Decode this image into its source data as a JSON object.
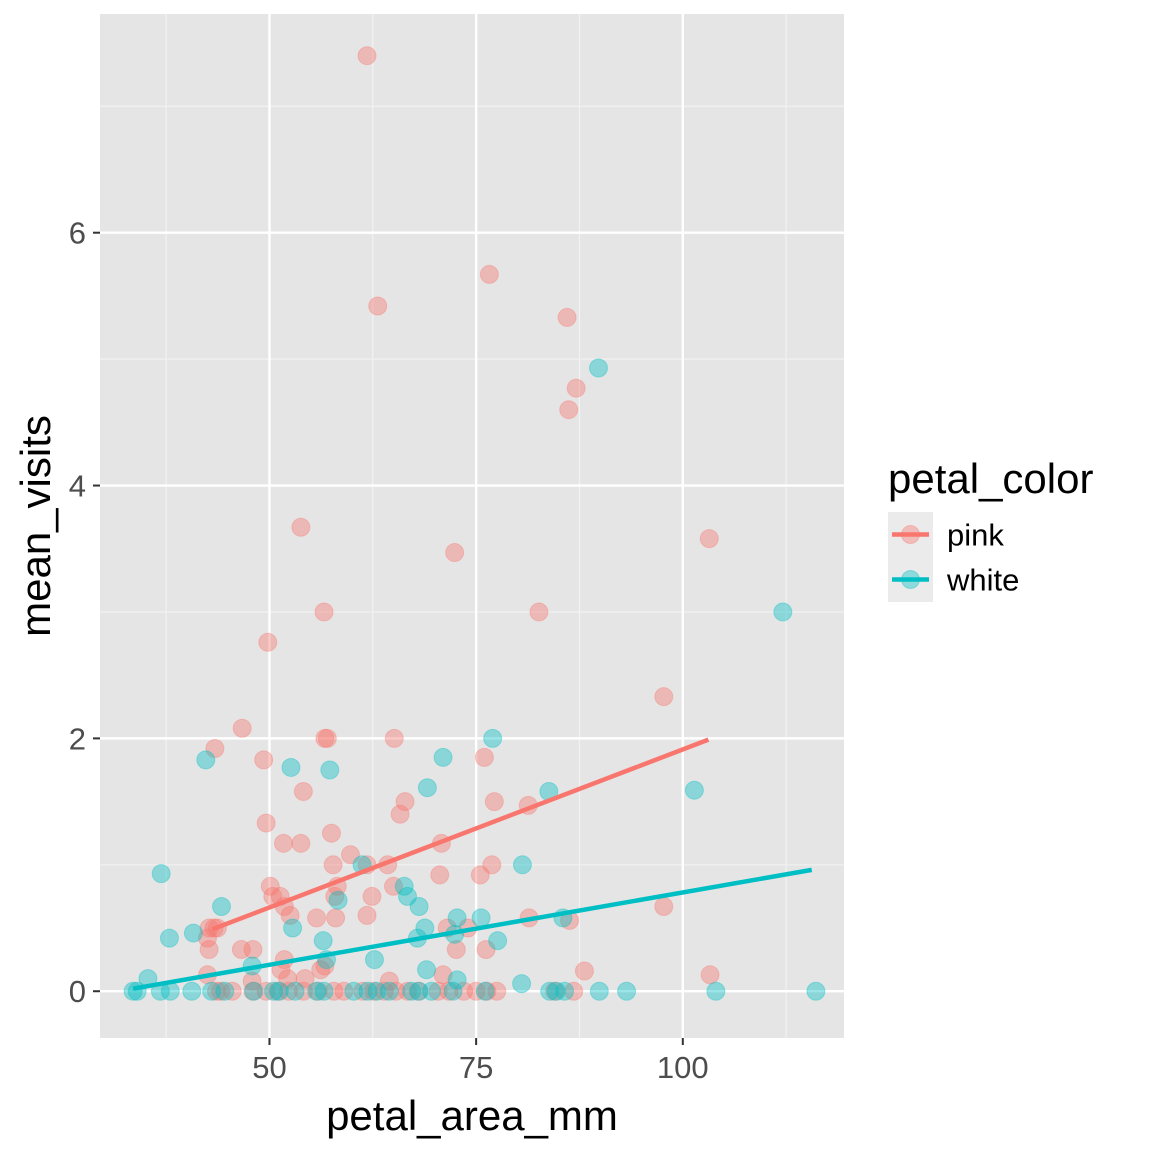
{
  "chart_data": {
    "type": "scatter",
    "title": "",
    "xlabel": "petal_area_mm",
    "ylabel": "mean_visits",
    "xlim": [
      29.5,
      119.5
    ],
    "ylim": [
      -0.37,
      7.73
    ],
    "x_ticks": [
      50,
      75,
      100
    ],
    "x_tick_labels": [
      "50",
      "75",
      "100"
    ],
    "y_ticks": [
      0,
      2,
      4,
      6
    ],
    "y_tick_labels": [
      "0",
      "2",
      "4",
      "6"
    ],
    "grid": true,
    "panel_background": "#e5e5e5",
    "legend": {
      "title": "petal_color",
      "position": "right",
      "entries": [
        "pink",
        "white"
      ]
    },
    "series": [
      {
        "name": "pink",
        "color": "#f8766d",
        "points": [
          [
            61.8,
            7.4
          ],
          [
            76.6,
            5.67
          ],
          [
            63.1,
            5.42
          ],
          [
            86.0,
            5.33
          ],
          [
            87.1,
            4.77
          ],
          [
            86.2,
            4.6
          ],
          [
            53.8,
            3.67
          ],
          [
            72.4,
            3.47
          ],
          [
            103.2,
            3.58
          ],
          [
            56.6,
            3.0
          ],
          [
            82.6,
            3.0
          ],
          [
            49.8,
            2.76
          ],
          [
            97.7,
            2.33
          ],
          [
            46.7,
            2.08
          ],
          [
            43.4,
            1.92
          ],
          [
            56.7,
            2.0
          ],
          [
            57.0,
            2.0
          ],
          [
            65.1,
            2.0
          ],
          [
            49.3,
            1.83
          ],
          [
            76.0,
            1.85
          ],
          [
            54.1,
            1.58
          ],
          [
            66.4,
            1.5
          ],
          [
            77.2,
            1.5
          ],
          [
            65.8,
            1.4
          ],
          [
            81.3,
            1.47
          ],
          [
            49.6,
            1.33
          ],
          [
            51.7,
            1.17
          ],
          [
            53.8,
            1.17
          ],
          [
            57.5,
            1.25
          ],
          [
            59.8,
            1.08
          ],
          [
            70.8,
            1.17
          ],
          [
            57.7,
            1.0
          ],
          [
            61.8,
            1.0
          ],
          [
            64.3,
            1.0
          ],
          [
            76.9,
            1.0
          ],
          [
            50.1,
            0.83
          ],
          [
            50.4,
            0.75
          ],
          [
            51.3,
            0.75
          ],
          [
            57.9,
            0.75
          ],
          [
            58.2,
            0.83
          ],
          [
            62.4,
            0.75
          ],
          [
            65.0,
            0.83
          ],
          [
            70.6,
            0.92
          ],
          [
            75.5,
            0.92
          ],
          [
            51.8,
            0.67
          ],
          [
            52.5,
            0.6
          ],
          [
            55.7,
            0.58
          ],
          [
            58.0,
            0.58
          ],
          [
            61.8,
            0.6
          ],
          [
            42.7,
            0.5
          ],
          [
            43.3,
            0.5
          ],
          [
            43.7,
            0.5
          ],
          [
            71.5,
            0.5
          ],
          [
            74.0,
            0.5
          ],
          [
            81.4,
            0.58
          ],
          [
            86.3,
            0.56
          ],
          [
            97.7,
            0.67
          ],
          [
            42.7,
            0.33
          ],
          [
            46.6,
            0.33
          ],
          [
            48.0,
            0.33
          ],
          [
            72.6,
            0.33
          ],
          [
            76.2,
            0.33
          ],
          [
            42.5,
            0.42
          ],
          [
            51.8,
            0.25
          ],
          [
            56.7,
            0.2
          ],
          [
            51.4,
            0.17
          ],
          [
            54.3,
            0.1
          ],
          [
            56.2,
            0.17
          ],
          [
            42.5,
            0.13
          ],
          [
            52.2,
            0.1
          ],
          [
            64.5,
            0.08
          ],
          [
            71.0,
            0.13
          ],
          [
            88.1,
            0.16
          ],
          [
            103.3,
            0.13
          ],
          [
            47.9,
            0.08
          ],
          [
            43.6,
            0.0
          ],
          [
            44.1,
            0.0
          ],
          [
            45.5,
            0.0
          ],
          [
            48.0,
            0.0
          ],
          [
            49.6,
            0.0
          ],
          [
            51.0,
            0.0
          ],
          [
            52.3,
            0.0
          ],
          [
            54.1,
            0.0
          ],
          [
            55.9,
            0.0
          ],
          [
            57.8,
            0.0
          ],
          [
            59.0,
            0.0
          ],
          [
            61.3,
            0.0
          ],
          [
            62.6,
            0.0
          ],
          [
            63.9,
            0.0
          ],
          [
            65.3,
            0.0
          ],
          [
            66.7,
            0.0
          ],
          [
            68.0,
            0.0
          ],
          [
            70.4,
            0.0
          ],
          [
            71.7,
            0.0
          ],
          [
            73.5,
            0.0
          ],
          [
            75.0,
            0.0
          ],
          [
            76.3,
            0.0
          ],
          [
            77.5,
            0.0
          ],
          [
            84.5,
            0.0
          ],
          [
            86.8,
            0.0
          ]
        ],
        "trend": [
          [
            43.1,
            0.49
          ],
          [
            103.1,
            1.99
          ]
        ]
      },
      {
        "name": "white",
        "color": "#00bfc4",
        "points": [
          [
            89.8,
            4.93
          ],
          [
            112.1,
            3.0
          ],
          [
            101.4,
            1.59
          ],
          [
            77.0,
            2.0
          ],
          [
            42.3,
            1.83
          ],
          [
            52.6,
            1.77
          ],
          [
            57.3,
            1.75
          ],
          [
            71.0,
            1.85
          ],
          [
            69.1,
            1.61
          ],
          [
            83.8,
            1.58
          ],
          [
            36.9,
            0.93
          ],
          [
            80.6,
            1.0
          ],
          [
            61.2,
            1.0
          ],
          [
            66.3,
            0.83
          ],
          [
            66.7,
            0.75
          ],
          [
            58.3,
            0.72
          ],
          [
            44.2,
            0.67
          ],
          [
            68.1,
            0.67
          ],
          [
            72.7,
            0.58
          ],
          [
            75.6,
            0.58
          ],
          [
            85.5,
            0.58
          ],
          [
            52.8,
            0.5
          ],
          [
            68.8,
            0.5
          ],
          [
            72.4,
            0.45
          ],
          [
            40.8,
            0.46
          ],
          [
            37.9,
            0.42
          ],
          [
            56.5,
            0.4
          ],
          [
            67.9,
            0.42
          ],
          [
            77.6,
            0.4
          ],
          [
            62.7,
            0.25
          ],
          [
            47.9,
            0.2
          ],
          [
            56.9,
            0.25
          ],
          [
            69.0,
            0.17
          ],
          [
            35.3,
            0.1
          ],
          [
            72.7,
            0.09
          ],
          [
            80.5,
            0.06
          ],
          [
            33.5,
            0.0
          ],
          [
            34.0,
            0.0
          ],
          [
            36.8,
            0.0
          ],
          [
            38.0,
            0.0
          ],
          [
            40.6,
            0.0
          ],
          [
            43.0,
            0.0
          ],
          [
            44.6,
            0.0
          ],
          [
            48.1,
            0.0
          ],
          [
            50.5,
            0.0
          ],
          [
            51.2,
            0.0
          ],
          [
            53.1,
            0.0
          ],
          [
            55.7,
            0.0
          ],
          [
            56.6,
            0.0
          ],
          [
            60.2,
            0.0
          ],
          [
            61.9,
            0.0
          ],
          [
            63.0,
            0.0
          ],
          [
            64.5,
            0.0
          ],
          [
            67.2,
            0.0
          ],
          [
            68.1,
            0.0
          ],
          [
            69.6,
            0.0
          ],
          [
            72.2,
            0.0
          ],
          [
            76.1,
            0.0
          ],
          [
            83.9,
            0.0
          ],
          [
            84.7,
            0.0
          ],
          [
            85.7,
            0.0
          ],
          [
            89.9,
            0.0
          ],
          [
            93.2,
            0.0
          ],
          [
            104.0,
            0.0
          ],
          [
            116.1,
            0.0
          ]
        ],
        "trend": [
          [
            33.5,
            0.02
          ],
          [
            115.6,
            0.96
          ]
        ]
      }
    ]
  }
}
